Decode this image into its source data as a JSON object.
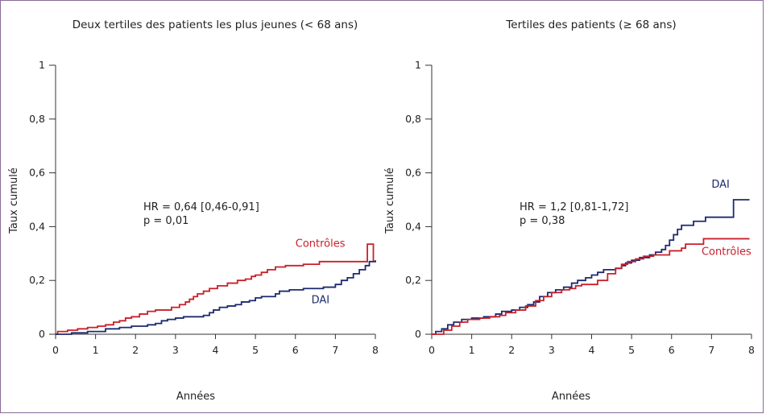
{
  "chart_data": [
    {
      "type": "line",
      "title": "Deux tertiles des patients les plus jeunes (< 68 ans)",
      "xlabel": "Années",
      "ylabel": "Taux cumulé",
      "xlim": [
        0,
        8
      ],
      "ylim": [
        0,
        1
      ],
      "xticks": [
        "0",
        "1",
        "2",
        "3",
        "4",
        "5",
        "6",
        "7",
        "8"
      ],
      "yticks": [
        "0",
        "0,2",
        "0,4",
        "0,6",
        "0,8",
        "1"
      ],
      "annotation": [
        "HR = 0,64 [0,46-0,91]",
        "p = 0,01"
      ],
      "series": [
        {
          "name": "Contrôles",
          "color": "#c8202a",
          "points": [
            [
              0,
              0
            ],
            [
              0.05,
              0.01
            ],
            [
              0.3,
              0.015
            ],
            [
              0.55,
              0.02
            ],
            [
              0.8,
              0.025
            ],
            [
              1.05,
              0.03
            ],
            [
              1.25,
              0.035
            ],
            [
              1.45,
              0.045
            ],
            [
              1.6,
              0.05
            ],
            [
              1.75,
              0.06
            ],
            [
              1.9,
              0.065
            ],
            [
              2.1,
              0.075
            ],
            [
              2.3,
              0.085
            ],
            [
              2.5,
              0.09
            ],
            [
              2.9,
              0.1
            ],
            [
              3.1,
              0.11
            ],
            [
              3.25,
              0.12
            ],
            [
              3.35,
              0.13
            ],
            [
              3.45,
              0.14
            ],
            [
              3.55,
              0.15
            ],
            [
              3.7,
              0.16
            ],
            [
              3.85,
              0.17
            ],
            [
              4.05,
              0.18
            ],
            [
              4.3,
              0.19
            ],
            [
              4.55,
              0.2
            ],
            [
              4.75,
              0.205
            ],
            [
              4.9,
              0.215
            ],
            [
              5.0,
              0.22
            ],
            [
              5.15,
              0.23
            ],
            [
              5.3,
              0.24
            ],
            [
              5.5,
              0.25
            ],
            [
              5.75,
              0.255
            ],
            [
              6.2,
              0.26
            ],
            [
              6.6,
              0.27
            ],
            [
              7.0,
              0.27
            ],
            [
              7.8,
              0.27
            ],
            [
              7.8,
              0.335
            ],
            [
              7.95,
              0.335
            ],
            [
              7.95,
              0.27
            ]
          ]
        },
        {
          "name": "DAI",
          "color": "#1e2a6e",
          "points": [
            [
              0,
              0
            ],
            [
              0.4,
              0.005
            ],
            [
              0.8,
              0.01
            ],
            [
              1.25,
              0.02
            ],
            [
              1.6,
              0.025
            ],
            [
              1.9,
              0.03
            ],
            [
              2.3,
              0.035
            ],
            [
              2.5,
              0.04
            ],
            [
              2.65,
              0.05
            ],
            [
              2.8,
              0.055
            ],
            [
              3.0,
              0.06
            ],
            [
              3.2,
              0.065
            ],
            [
              3.7,
              0.07
            ],
            [
              3.85,
              0.08
            ],
            [
              3.95,
              0.09
            ],
            [
              4.1,
              0.1
            ],
            [
              4.3,
              0.105
            ],
            [
              4.5,
              0.11
            ],
            [
              4.65,
              0.12
            ],
            [
              4.85,
              0.125
            ],
            [
              5.0,
              0.135
            ],
            [
              5.15,
              0.14
            ],
            [
              5.5,
              0.15
            ],
            [
              5.6,
              0.16
            ],
            [
              5.85,
              0.165
            ],
            [
              6.2,
              0.17
            ],
            [
              6.7,
              0.175
            ],
            [
              7.0,
              0.185
            ],
            [
              7.15,
              0.2
            ],
            [
              7.3,
              0.21
            ],
            [
              7.45,
              0.225
            ],
            [
              7.6,
              0.24
            ],
            [
              7.75,
              0.255
            ],
            [
              7.85,
              0.27
            ],
            [
              8.0,
              0.275
            ]
          ]
        }
      ],
      "labels": [
        {
          "text": "Contrôles",
          "color": "#c8202a",
          "x": 6.0,
          "y": 0.325
        },
        {
          "text": "DAI",
          "color": "#1e2a6e",
          "x": 6.4,
          "y": 0.115
        }
      ]
    },
    {
      "type": "line",
      "title": "Tertiles des patients (≥ 68 ans)",
      "xlabel": "Années",
      "ylabel": "Taux cumulé",
      "xlim": [
        0,
        8
      ],
      "ylim": [
        0,
        1
      ],
      "xticks": [
        "0",
        "1",
        "2",
        "3",
        "4",
        "5",
        "6",
        "7",
        "8"
      ],
      "yticks": [
        "0",
        "0,2",
        "0,4",
        "0,6",
        "0,8",
        "1"
      ],
      "annotation": [
        "HR = 1,2 [0,81-1,72]",
        "p = 0,38"
      ],
      "series": [
        {
          "name": "DAI",
          "color": "#1e2a6e",
          "points": [
            [
              0,
              0
            ],
            [
              0.1,
              0.01
            ],
            [
              0.25,
              0.02
            ],
            [
              0.4,
              0.035
            ],
            [
              0.55,
              0.045
            ],
            [
              0.75,
              0.055
            ],
            [
              1.0,
              0.06
            ],
            [
              1.3,
              0.065
            ],
            [
              1.6,
              0.075
            ],
            [
              1.75,
              0.085
            ],
            [
              2.0,
              0.09
            ],
            [
              2.2,
              0.1
            ],
            [
              2.4,
              0.11
            ],
            [
              2.55,
              0.12
            ],
            [
              2.7,
              0.14
            ],
            [
              2.9,
              0.155
            ],
            [
              3.1,
              0.165
            ],
            [
              3.3,
              0.175
            ],
            [
              3.5,
              0.19
            ],
            [
              3.65,
              0.2
            ],
            [
              3.85,
              0.21
            ],
            [
              4.0,
              0.22
            ],
            [
              4.15,
              0.23
            ],
            [
              4.3,
              0.24
            ],
            [
              4.6,
              0.245
            ],
            [
              4.75,
              0.255
            ],
            [
              4.85,
              0.265
            ],
            [
              5.0,
              0.275
            ],
            [
              5.2,
              0.285
            ],
            [
              5.45,
              0.295
            ],
            [
              5.6,
              0.305
            ],
            [
              5.75,
              0.315
            ],
            [
              5.85,
              0.33
            ],
            [
              5.95,
              0.35
            ],
            [
              6.05,
              0.37
            ],
            [
              6.15,
              0.39
            ],
            [
              6.25,
              0.405
            ],
            [
              6.55,
              0.42
            ],
            [
              6.85,
              0.435
            ],
            [
              7.55,
              0.445
            ],
            [
              7.55,
              0.5
            ],
            [
              7.95,
              0.5
            ]
          ]
        },
        {
          "name": "Contrôles",
          "color": "#c8202a",
          "points": [
            [
              0,
              0
            ],
            [
              0.3,
              0.015
            ],
            [
              0.5,
              0.03
            ],
            [
              0.7,
              0.045
            ],
            [
              0.9,
              0.055
            ],
            [
              1.2,
              0.06
            ],
            [
              1.45,
              0.065
            ],
            [
              1.7,
              0.07
            ],
            [
              1.85,
              0.08
            ],
            [
              2.1,
              0.09
            ],
            [
              2.35,
              0.105
            ],
            [
              2.6,
              0.125
            ],
            [
              2.8,
              0.14
            ],
            [
              3.0,
              0.155
            ],
            [
              3.25,
              0.165
            ],
            [
              3.45,
              0.17
            ],
            [
              3.6,
              0.18
            ],
            [
              3.75,
              0.185
            ],
            [
              4.15,
              0.2
            ],
            [
              4.4,
              0.225
            ],
            [
              4.6,
              0.245
            ],
            [
              4.75,
              0.26
            ],
            [
              4.9,
              0.27
            ],
            [
              5.1,
              0.28
            ],
            [
              5.3,
              0.29
            ],
            [
              5.55,
              0.295
            ],
            [
              5.95,
              0.31
            ],
            [
              6.25,
              0.32
            ],
            [
              6.35,
              0.335
            ],
            [
              6.8,
              0.34
            ],
            [
              6.8,
              0.355
            ],
            [
              7.95,
              0.355
            ]
          ]
        }
      ],
      "labels": [
        {
          "text": "DAI",
          "color": "#1e2a6e",
          "x": 7.0,
          "y": 0.545
        },
        {
          "text": "Contrôles",
          "color": "#c8202a",
          "x": 6.75,
          "y": 0.295
        }
      ]
    }
  ]
}
